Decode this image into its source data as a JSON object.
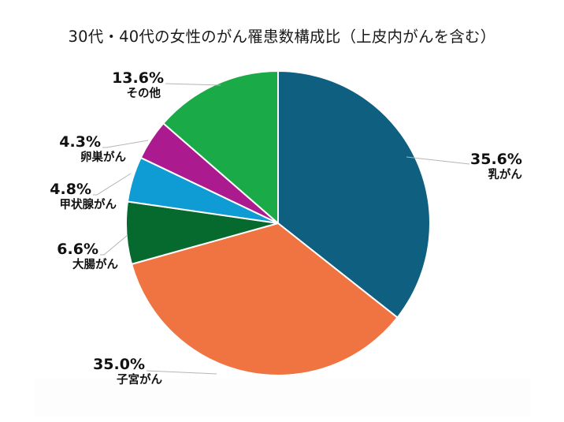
{
  "title": "30代・40代の女性のがん罹患数構成比（上皮内がんを含む）",
  "chart_data": {
    "type": "pie",
    "title": "30代・40代の女性のがん罹患数構成比（上皮内がんを含む）",
    "start_angle_deg": 0,
    "direction": "clockwise",
    "slices": [
      {
        "label": "乳がん",
        "value": 35.6,
        "value_label": "35.6%",
        "color": "#0e5f80"
      },
      {
        "label": "子宮がん",
        "value": 35.0,
        "value_label": "35.0%",
        "color": "#f07441"
      },
      {
        "label": "大腸がん",
        "value": 6.6,
        "value_label": "6.6%",
        "color": "#066a2f"
      },
      {
        "label": "甲状腺がん",
        "value": 4.8,
        "value_label": "4.8%",
        "color": "#0f9bd4"
      },
      {
        "label": "卵巣がん",
        "value": 4.3,
        "value_label": "4.3%",
        "color": "#ab1a8f"
      },
      {
        "label": "その他",
        "value": 13.6,
        "value_label": "13.6%",
        "color": "#1aab48"
      }
    ],
    "legend": "none (data labels with leader lines)"
  },
  "labels": {
    "breast": {
      "pct": "35.6%",
      "name": "乳がん"
    },
    "uterine": {
      "pct": "35.0%",
      "name": "子宮がん"
    },
    "colorectal": {
      "pct": "6.6%",
      "name": "大腸がん"
    },
    "thyroid": {
      "pct": "4.8%",
      "name": "甲状腺がん"
    },
    "ovarian": {
      "pct": "4.3%",
      "name": "卵巣がん"
    },
    "other": {
      "pct": "13.6%",
      "name": "その他"
    }
  }
}
